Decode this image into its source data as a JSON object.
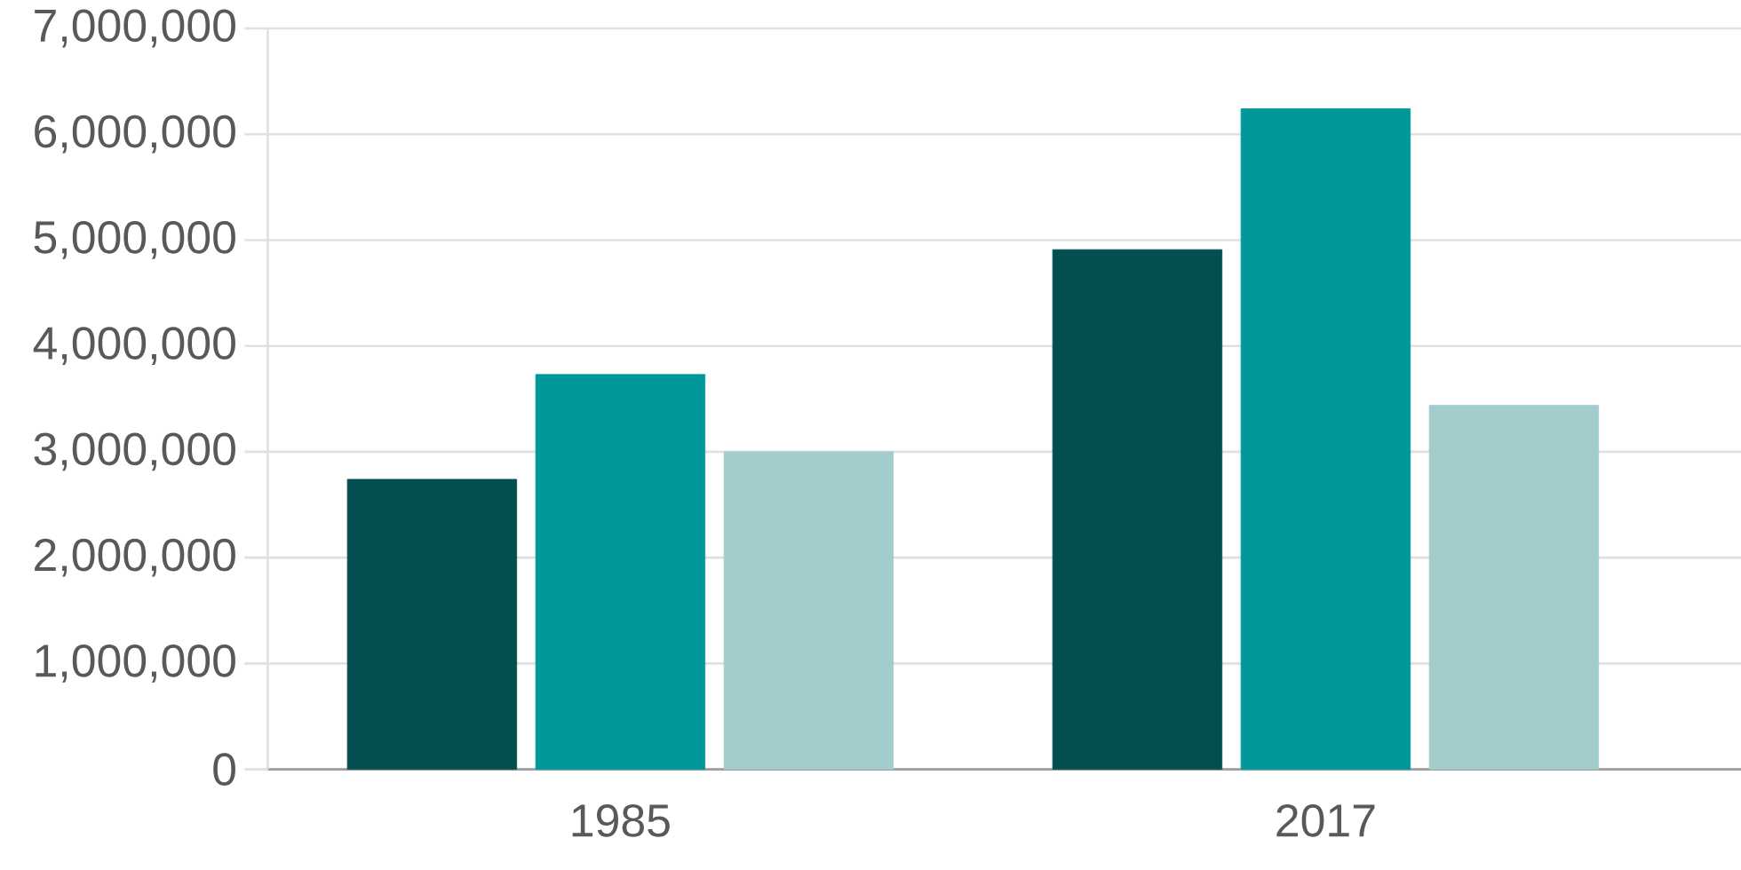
{
  "chart_data": {
    "type": "bar",
    "categories": [
      "1985",
      "2017"
    ],
    "series": [
      {
        "color": "#034f4f",
        "values": [
          2740000,
          4910000
        ]
      },
      {
        "color": "#009898",
        "values": [
          3730000,
          6240000
        ]
      },
      {
        "color": "#a2cdcc",
        "values": [
          3000000,
          3440000
        ]
      }
    ],
    "ylim": [
      0,
      7000000
    ],
    "yticks": [
      0,
      {
        "value": 1000000,
        "label": "1,000,000"
      },
      {
        "value": 2000000,
        "label": "2,000,000"
      },
      {
        "value": 3000000,
        "label": "3,000,000"
      },
      {
        "value": 4000000,
        "label": "4,000,000"
      },
      {
        "value": 5000000,
        "label": "5,000,000"
      },
      {
        "value": 6000000,
        "label": "6,000,000"
      },
      {
        "value": 7000000,
        "label": "7,000,000"
      }
    ],
    "grid": "y"
  }
}
